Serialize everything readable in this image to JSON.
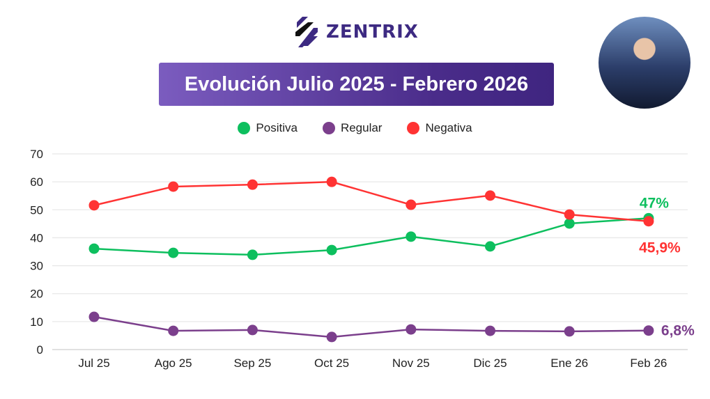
{
  "logo": {
    "text": "ZENTRIX"
  },
  "chart_data": {
    "type": "line",
    "title": "Evolución Julio 2025 - Febrero 2026",
    "categories": [
      "Jul 25",
      "Ago 25",
      "Sep 25",
      "Oct 25",
      "Nov 25",
      "Dic 25",
      "Ene 26",
      "Feb 26"
    ],
    "ylim": [
      0,
      70
    ],
    "yticks": [
      0,
      10,
      20,
      30,
      40,
      50,
      60,
      70
    ],
    "grid": true,
    "legend_position": "top-center",
    "series": [
      {
        "name": "Positiva",
        "color": "#0dbf5e",
        "values": [
          36.1,
          34.6,
          33.9,
          35.6,
          40.4,
          36.9,
          45.1,
          47
        ],
        "end_label": "47%"
      },
      {
        "name": "Regular",
        "color": "#7b3f8c",
        "values": [
          11.7,
          6.7,
          7.0,
          4.5,
          7.2,
          6.7,
          6.5,
          6.8
        ],
        "end_label": "6,8%"
      },
      {
        "name": "Negativa",
        "color": "#ff3333",
        "values": [
          51.6,
          58.3,
          59.0,
          60.0,
          51.8,
          55.1,
          48.3,
          45.9
        ],
        "end_label": "45,9%"
      }
    ]
  }
}
